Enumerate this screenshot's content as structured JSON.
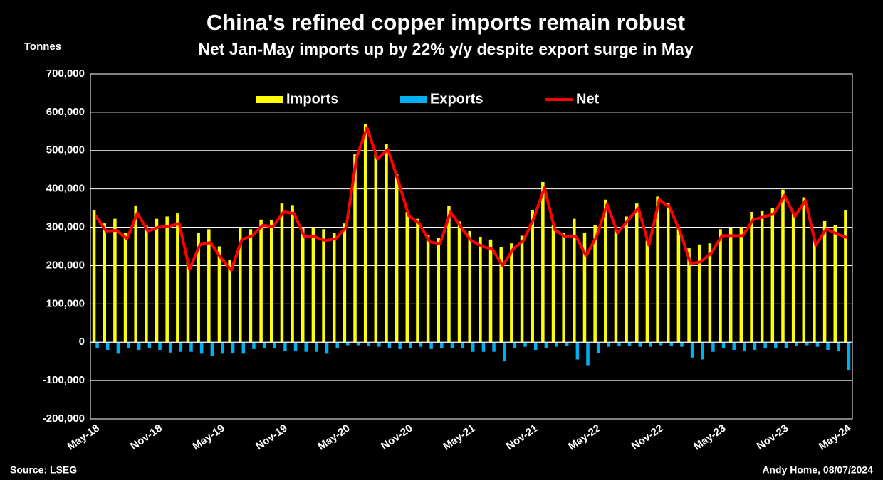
{
  "chart_data": {
    "type": "bar",
    "title": "China's refined copper imports remain robust",
    "subtitle": "Net Jan-May imports up by 22% y/y despite export surge in May",
    "y_label": "Tonnes",
    "source": "Source: LSEG",
    "credit": "Andy Home, 08/07/2024",
    "grid": true,
    "categories": [
      "May-18",
      null,
      null,
      null,
      null,
      null,
      "Nov-18",
      null,
      null,
      null,
      null,
      null,
      "May-19",
      null,
      null,
      null,
      null,
      null,
      "Nov-19",
      null,
      null,
      null,
      null,
      null,
      "May-20",
      null,
      null,
      null,
      null,
      null,
      "Nov-20",
      null,
      null,
      null,
      null,
      null,
      "May-21",
      null,
      null,
      null,
      null,
      null,
      "Nov-21",
      null,
      null,
      null,
      null,
      null,
      "May-22",
      null,
      null,
      null,
      null,
      null,
      "Nov-22",
      null,
      null,
      null,
      null,
      null,
      "May-23",
      null,
      null,
      null,
      null,
      null,
      "Nov-23",
      null,
      null,
      null,
      null,
      null,
      "May-24"
    ],
    "ylim": [
      -200000,
      700000
    ],
    "yticks": [
      {
        "value": -200000,
        "label": "-200,000"
      },
      {
        "value": -100000,
        "label": "-100,000"
      },
      0,
      {
        "value": 100000,
        "label": "100,000"
      },
      {
        "value": 200000,
        "label": "200,000"
      },
      {
        "value": 300000,
        "label": "300,000"
      },
      {
        "value": 400000,
        "label": "400,000"
      },
      {
        "value": 500000,
        "label": "500,000"
      },
      {
        "value": 600000,
        "label": "600,000"
      },
      {
        "value": 700000,
        "label": "700,000"
      }
    ],
    "series": [
      {
        "name": "Imports",
        "type": "bar",
        "color": "#ffff00",
        "values": [
          345000,
          310000,
          322000,
          285000,
          357000,
          305000,
          322000,
          328000,
          336000,
          215000,
          285000,
          295000,
          250000,
          215000,
          298000,
          295000,
          320000,
          318000,
          362000,
          358000,
          300000,
          300000,
          295000,
          285000,
          310000,
          490000,
          570000,
          490000,
          518000,
          440000,
          340000,
          322000,
          280000,
          272000,
          355000,
          315000,
          290000,
          275000,
          268000,
          248000,
          258000,
          278000,
          345000,
          418000,
          305000,
          285000,
          322000,
          285000,
          305000,
          372000,
          295000,
          328000,
          362000,
          265000,
          380000,
          362000,
          300000,
          245000,
          255000,
          258000,
          295000,
          298000,
          300000,
          340000,
          342000,
          350000,
          398000,
          338000,
          378000,
          265000,
          316000,
          305000,
          345000
        ]
      },
      {
        "name": "Exports",
        "type": "bar",
        "color": "#00b0f0",
        "values": [
          -15000,
          -20000,
          -30000,
          -15000,
          -20000,
          -15000,
          -20000,
          -27000,
          -25000,
          -25000,
          -30000,
          -35000,
          -30000,
          -28000,
          -30000,
          -18000,
          -15000,
          -15000,
          -22000,
          -22000,
          -25000,
          -25000,
          -30000,
          -15000,
          -8000,
          -8000,
          -10000,
          -12000,
          -15000,
          -18000,
          -15000,
          -12000,
          -18000,
          -15000,
          -15000,
          -15000,
          -25000,
          -25000,
          -25000,
          -50000,
          -15000,
          -12000,
          -20000,
          -15000,
          -12000,
          -10000,
          -45000,
          -60000,
          -28000,
          -12000,
          -10000,
          -10000,
          -12000,
          -12000,
          -8000,
          -10000,
          -12000,
          -40000,
          -45000,
          -25000,
          -15000,
          -20000,
          -22000,
          -20000,
          -15000,
          -15000,
          -15000,
          -10000,
          -8000,
          -12000,
          -20000,
          -22000,
          -72000
        ]
      },
      {
        "name": "Net",
        "type": "line",
        "color": "#ff0000",
        "values": [
          330000,
          290000,
          292000,
          270000,
          337000,
          290000,
          300000,
          302000,
          310000,
          190000,
          255000,
          260000,
          220000,
          188000,
          268000,
          278000,
          305000,
          302000,
          340000,
          336000,
          275000,
          275000,
          265000,
          270000,
          300000,
          482000,
          560000,
          478000,
          503000,
          420000,
          330000,
          310000,
          262000,
          257000,
          340000,
          300000,
          265000,
          250000,
          243000,
          200000,
          243000,
          266000,
          325000,
          403000,
          293000,
          275000,
          277000,
          225000,
          277000,
          360000,
          285000,
          318000,
          350000,
          253000,
          372000,
          352000,
          288000,
          205000,
          210000,
          233000,
          278000,
          278000,
          278000,
          320000,
          327000,
          335000,
          383000,
          328000,
          370000,
          253000,
          296000,
          283000,
          273000
        ]
      }
    ]
  }
}
